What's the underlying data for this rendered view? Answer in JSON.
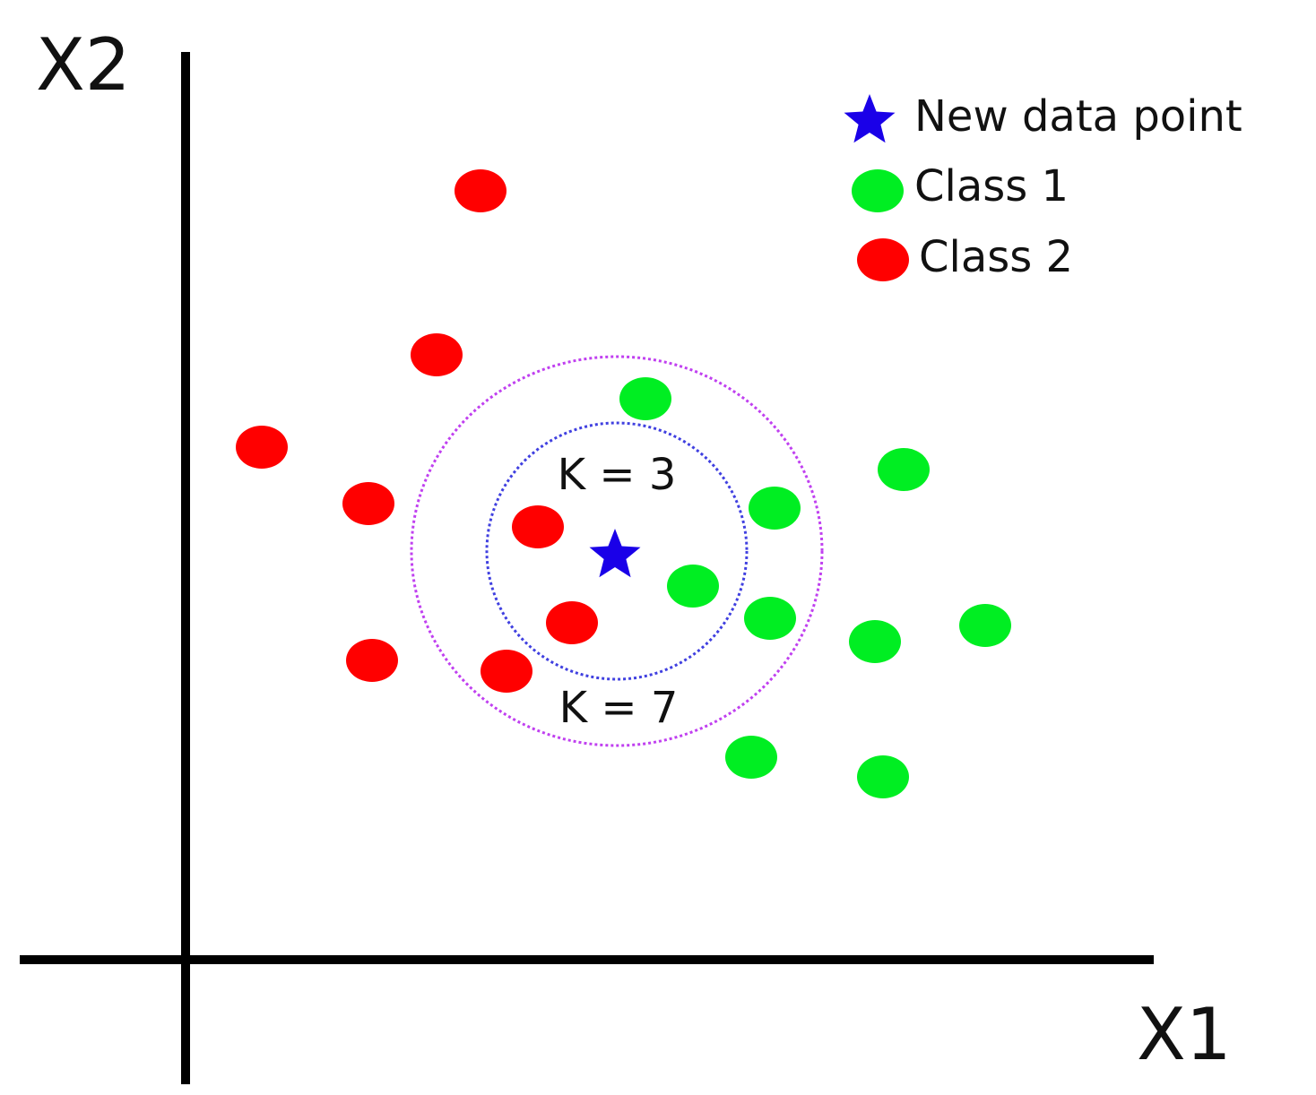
{
  "axes": {
    "y_label": "X2",
    "x_label": "X1"
  },
  "legend": {
    "items": [
      {
        "label": "New data point"
      },
      {
        "label": "Class 1"
      },
      {
        "label": "Class 2"
      }
    ]
  },
  "annotations": {
    "inner": "K = 3",
    "outer": "K = 7"
  }
}
